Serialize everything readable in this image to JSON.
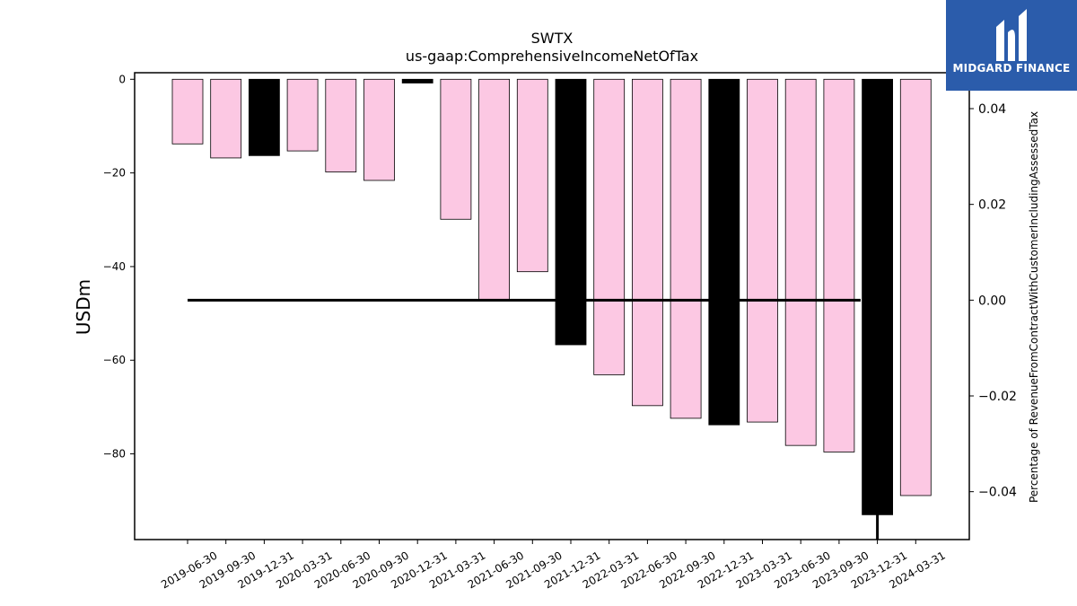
{
  "brand": {
    "name": "MIDGARD FINANCE",
    "bg_color": "#2b5cab"
  },
  "chart_data": {
    "type": "bar",
    "title": "SWTX",
    "subtitle": "us-gaap:ComprehensiveIncomeNetOfTax",
    "ylabel": "USDm",
    "ylabel_right": "Percentage of RevenueFromContractWithCustomerIncludingAssessedTax",
    "ylim": [
      -98.3,
      1.4
    ],
    "yticks": [
      0,
      -20,
      -40,
      -60,
      -80
    ],
    "ylim_right": [
      -0.05,
      0.0475
    ],
    "yticks_right": [
      0.04,
      0.02,
      0.0,
      -0.02,
      -0.04
    ],
    "ytick_labels_right": [
      "0.04",
      "0.02",
      "0.00",
      "−0.02",
      "−0.04"
    ],
    "categories": [
      "2019-06-30",
      "2019-09-30",
      "2019-12-31",
      "2020-03-31",
      "2020-06-30",
      "2020-09-30",
      "2020-12-31",
      "2021-03-31",
      "2021-06-30",
      "2021-09-30",
      "2021-12-31",
      "2022-03-31",
      "2022-06-30",
      "2022-09-30",
      "2022-12-31",
      "2023-03-31",
      "2023-06-30",
      "2023-09-30",
      "2023-12-31",
      "2024-03-31"
    ],
    "values": [
      -13.8,
      -16.8,
      -16.3,
      -15.3,
      -19.8,
      -21.6,
      -0.8,
      -29.9,
      -47.1,
      -41.1,
      -56.7,
      -63.1,
      -69.7,
      -72.4,
      -73.8,
      -73.2,
      -78.2,
      -79.6,
      -93.0,
      -88.9
    ],
    "bar_fill": [
      "pink",
      "pink",
      "black",
      "pink",
      "pink",
      "pink",
      "black",
      "pink",
      "pink",
      "pink",
      "black",
      "pink",
      "pink",
      "pink",
      "black",
      "pink",
      "pink",
      "pink",
      "black",
      "pink"
    ],
    "colors": {
      "pink": "#fcc8e3",
      "black": "#000000"
    },
    "percentage_series": {
      "x_start": "2019-06-30",
      "x_end": "2023-09-30",
      "value": 0.0,
      "drop_at": "2023-12-31"
    },
    "grid": false
  }
}
